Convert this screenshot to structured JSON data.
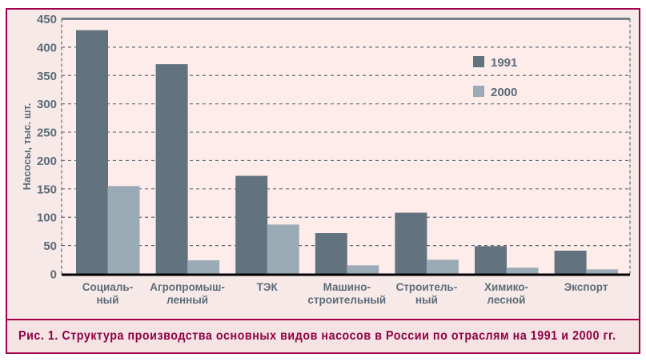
{
  "chart_data": {
    "type": "bar",
    "title": "",
    "caption": "Рис. 1. Структура производства основных видов насосов в России по отраслям на 1991 и 2000 гг.",
    "xlabel": "",
    "ylabel": "Насосы, тыс. шт.",
    "ylim": [
      0,
      450
    ],
    "yticks": [
      0,
      50,
      100,
      150,
      200,
      250,
      300,
      350,
      400,
      450
    ],
    "grid": true,
    "legend_position": "upper right",
    "categories": [
      [
        "Социаль-",
        "ный"
      ],
      [
        "Агропромыш-",
        "ленный"
      ],
      [
        "ТЭК"
      ],
      [
        "Машино-",
        "строительный"
      ],
      [
        "Строитель-",
        "ный"
      ],
      [
        "Химико-",
        "лесной"
      ],
      [
        "Экспорт"
      ]
    ],
    "series": [
      {
        "name": "1991",
        "color": "#62737f",
        "values": [
          430,
          370,
          173,
          72,
          108,
          49,
          41
        ]
      },
      {
        "name": "2000",
        "color": "#9aabb6",
        "values": [
          155,
          24,
          87,
          15,
          25,
          11,
          8
        ]
      }
    ]
  },
  "colors": {
    "border": "#a3004c",
    "caption_text": "#8e0045",
    "plot_bg": "#fdecea",
    "outer_bg": "#f6e9e7",
    "axis_text": "#5d6c78",
    "grid": "#5d6c78"
  }
}
